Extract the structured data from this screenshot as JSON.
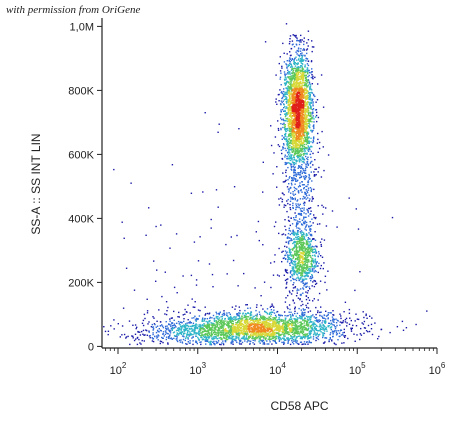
{
  "watermark": "with permission from OriGene",
  "chart_data": {
    "type": "scatter",
    "style": "density dot plot (flow cytometry)",
    "xlabel": "CD58 APC",
    "ylabel": "SS-A :: SS INT LIN",
    "x_scale": "log",
    "xlim": [
      63,
      1000000
    ],
    "ylim": [
      -5000,
      1020000
    ],
    "x_ticks": [
      {
        "value": 100,
        "base": "10",
        "exp": "2"
      },
      {
        "value": 1000,
        "base": "10",
        "exp": "3"
      },
      {
        "value": 10000,
        "base": "10",
        "exp": "4"
      },
      {
        "value": 100000,
        "base": "10",
        "exp": "5"
      },
      {
        "value": 1000000,
        "base": "10",
        "exp": "6"
      }
    ],
    "y_ticks": [
      {
        "value": 0,
        "label": "0"
      },
      {
        "value": 200000,
        "label": "200K"
      },
      {
        "value": 400000,
        "label": "400K"
      },
      {
        "value": 600000,
        "label": "600K"
      },
      {
        "value": 800000,
        "label": "800K"
      },
      {
        "value": 1000000,
        "label": "1,0M"
      }
    ],
    "populations": [
      {
        "x_center": 6000,
        "x_spread_decades": 0.55,
        "y_center": 60000,
        "y_spread": 25000,
        "count": 2200
      },
      {
        "x_center": 18000,
        "x_spread_decades": 0.09,
        "y_center": 740000,
        "y_spread": 90000,
        "count": 2200
      },
      {
        "x_center": 20000,
        "x_spread_decades": 0.1,
        "y_center": 280000,
        "y_spread": 45000,
        "count": 600
      },
      {
        "x_center": 19000,
        "x_spread_decades": 0.12,
        "y_center": 450000,
        "y_spread": 200000,
        "count": 700
      },
      {
        "x_center": 1500,
        "x_spread_decades": 0.6,
        "y_center": 40000,
        "y_spread": 18000,
        "count": 500
      },
      {
        "x_center": 3000,
        "x_spread_decades": 0.8,
        "y_center": 250000,
        "y_spread": 250000,
        "count": 150
      }
    ],
    "density_colors": [
      "#1a1aa8",
      "#2f6bd8",
      "#2fb5c8",
      "#5cc85a",
      "#d8d838",
      "#f08a20",
      "#e0201a"
    ],
    "grid": false,
    "legend": "none"
  }
}
